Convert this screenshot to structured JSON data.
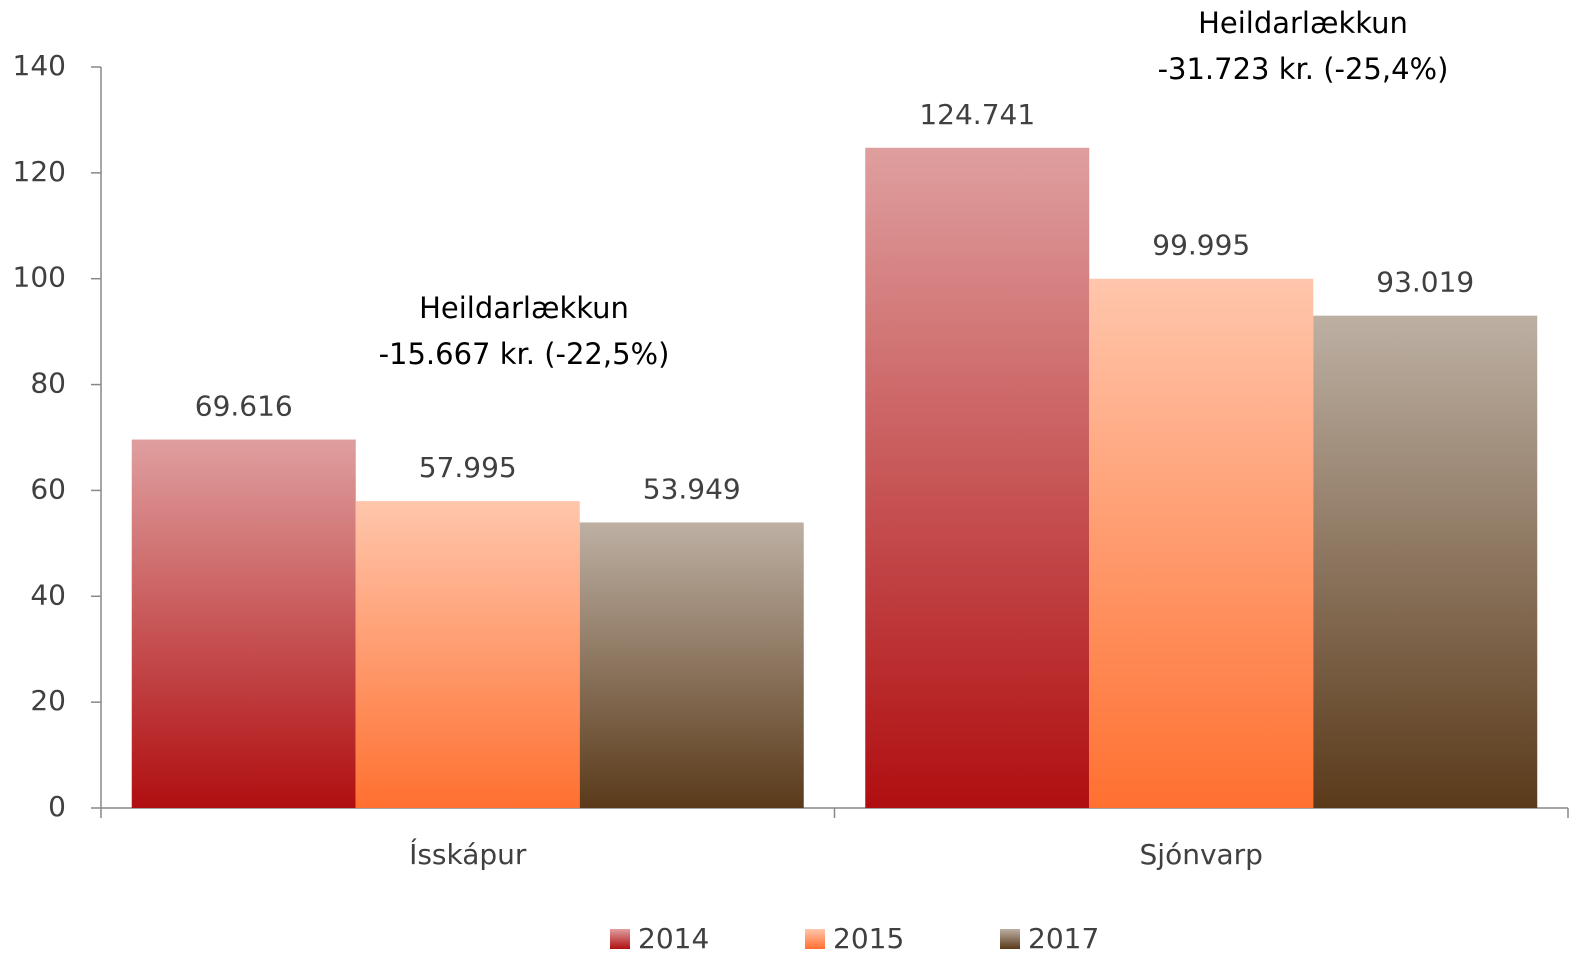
{
  "chart_data": {
    "type": "bar",
    "categories": [
      "Ísskápur",
      "Sjónvarp"
    ],
    "series": [
      {
        "name": "2014",
        "color": "#b00e10",
        "values": [
          69.616,
          124.741
        ]
      },
      {
        "name": "2015",
        "color": "#ff7030",
        "values": [
          57.995,
          99.995
        ]
      },
      {
        "name": "2017",
        "color": "#5a3a1a",
        "values": [
          53.949,
          93.019
        ]
      }
    ],
    "ylim": [
      0,
      140
    ],
    "yticks": [
      0,
      20,
      40,
      60,
      80,
      100,
      120,
      140
    ],
    "legend": "bottom",
    "annotations": [
      {
        "lines": [
          "Heildarlækkun",
          "-15.667 kr. (-22,5%)"
        ]
      },
      {
        "lines": [
          "Heildarlækkun",
          "-31.723 kr. (-25,4%)"
        ]
      }
    ]
  }
}
